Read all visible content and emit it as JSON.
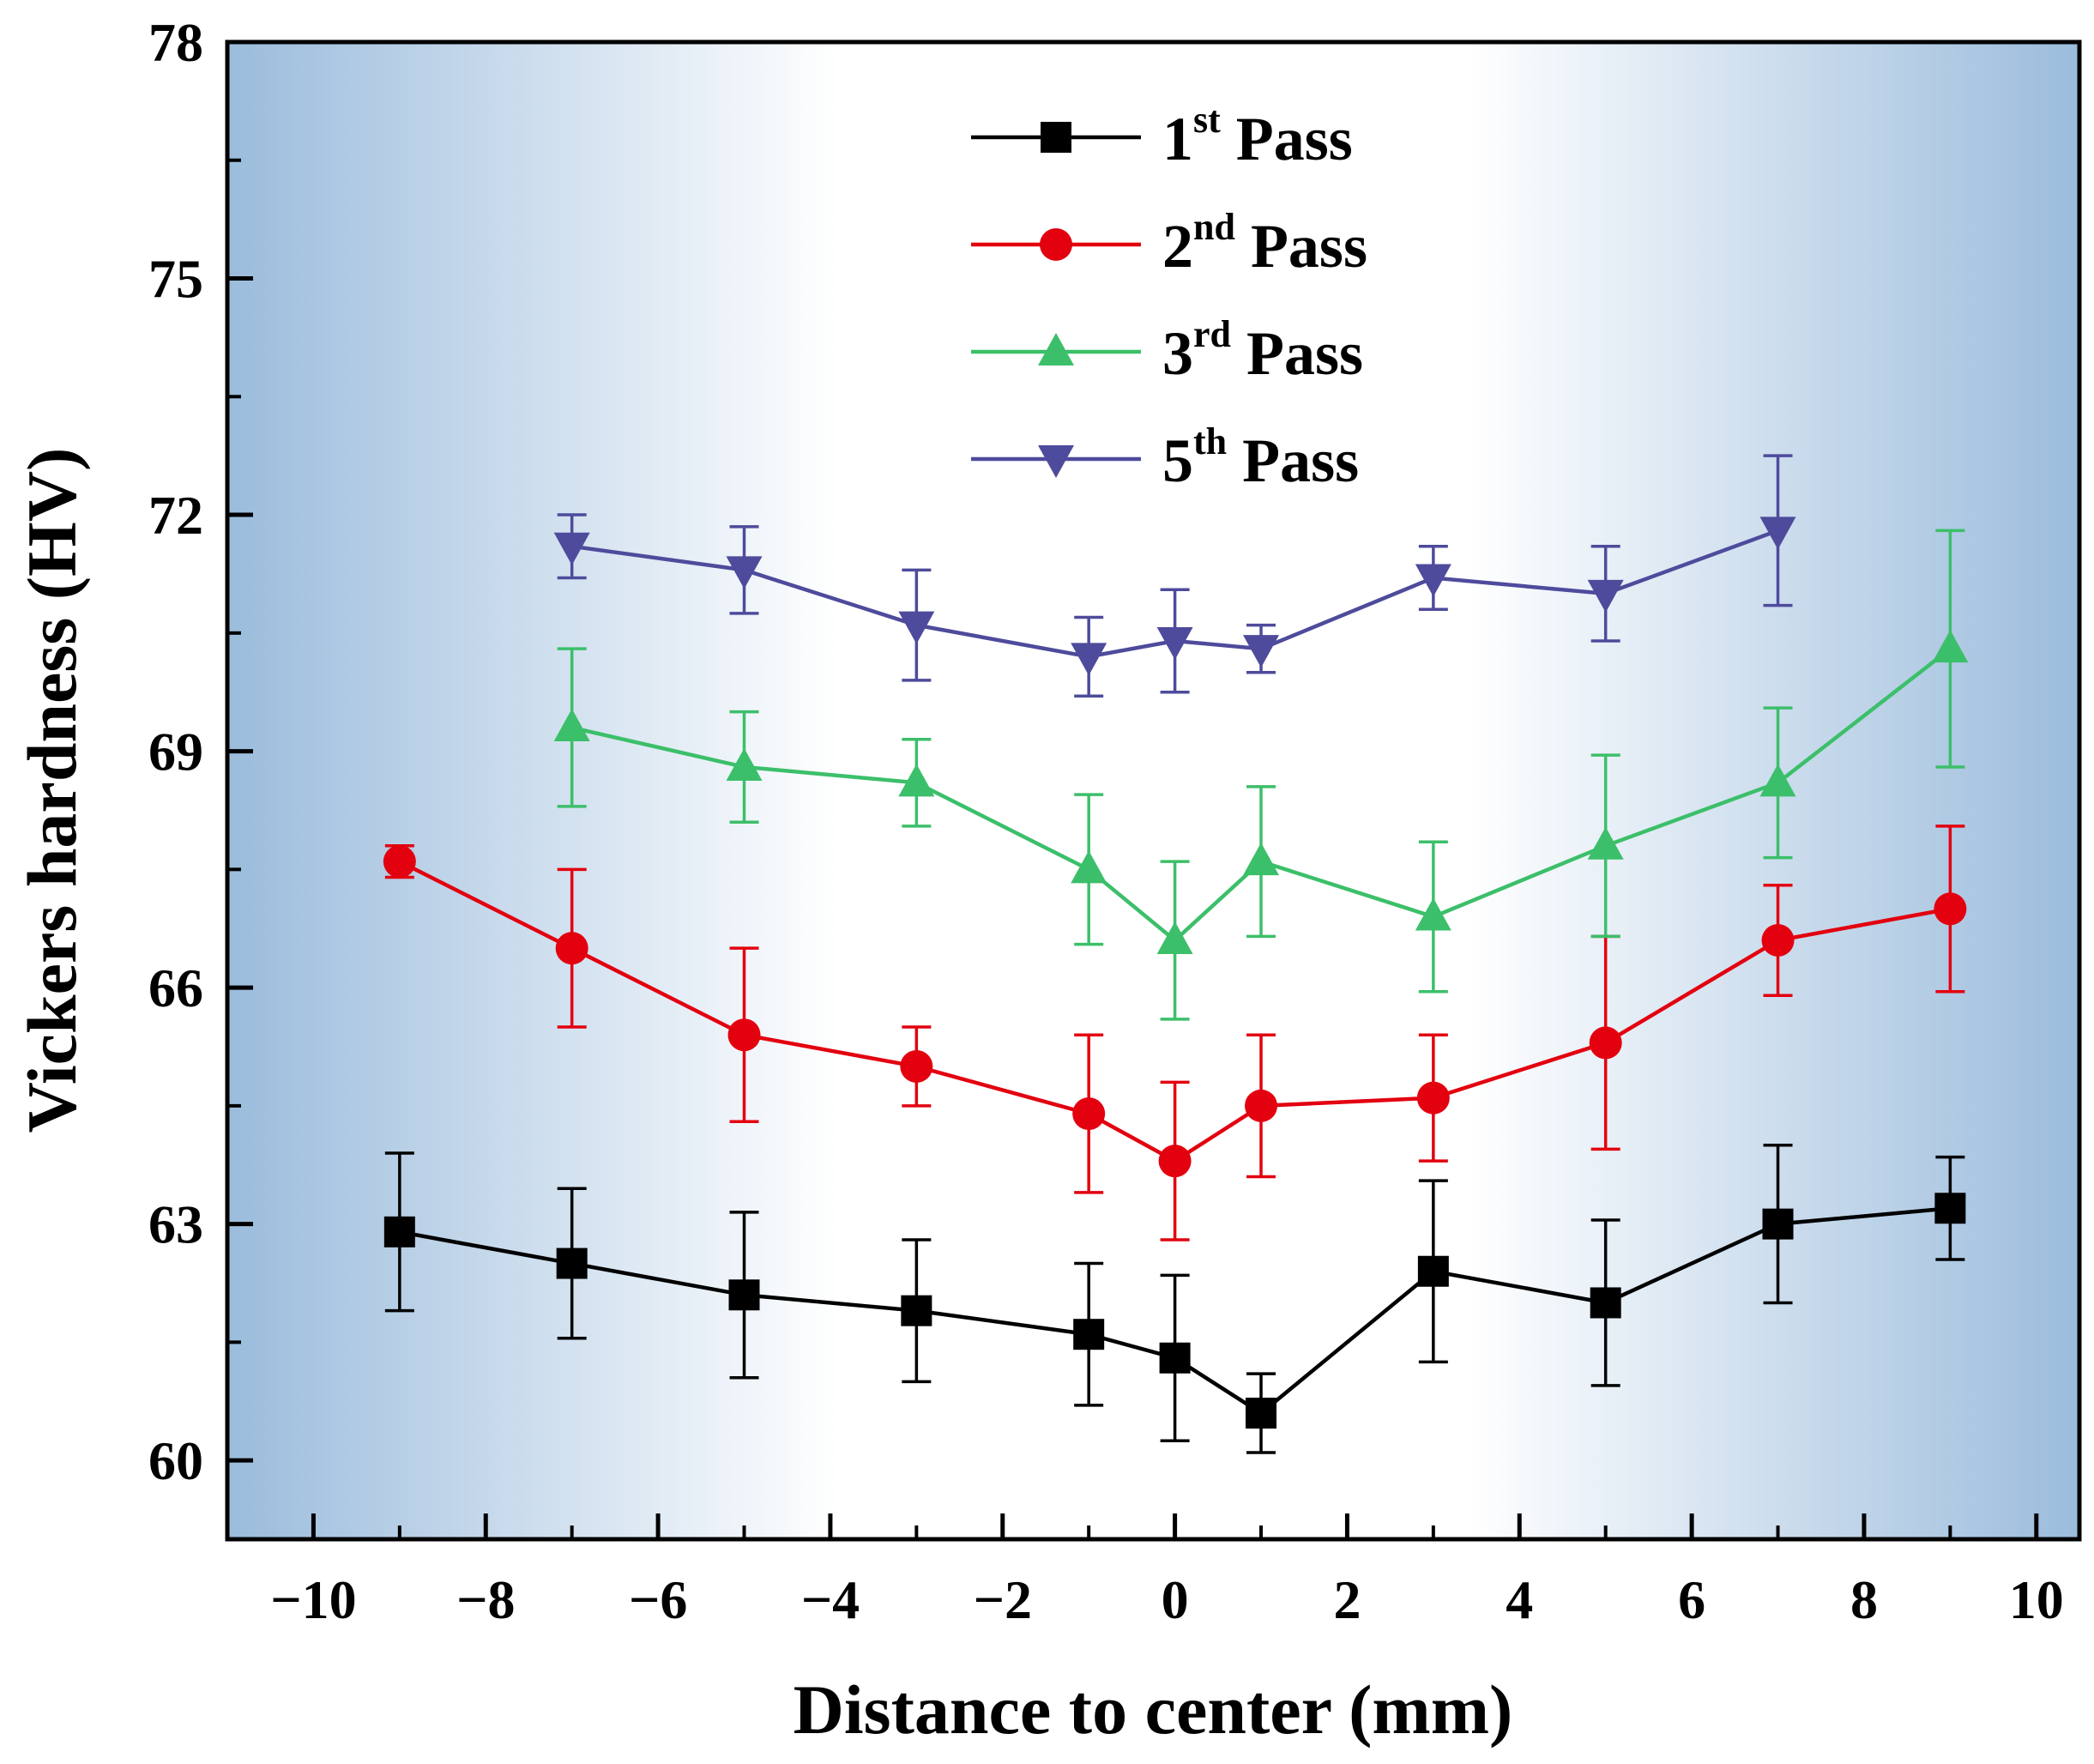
{
  "chart_data": {
    "type": "line",
    "xlabel": "Distance to center (mm)",
    "ylabel": "Vickers hardness (HV)",
    "xlim": [
      -11,
      10.5
    ],
    "ylim": [
      59,
      78
    ],
    "xticks": [
      -10,
      -8,
      -6,
      -4,
      -2,
      0,
      2,
      4,
      6,
      8,
      10
    ],
    "xtick_labels": [
      "−10",
      "−8",
      "−6",
      "−4",
      "−2",
      "0",
      "2",
      "4",
      "6",
      "8",
      "10"
    ],
    "yticks": [
      60,
      63,
      66,
      69,
      72,
      75,
      78
    ],
    "ytick_labels": [
      "60",
      "63",
      "66",
      "69",
      "72",
      "75",
      "78"
    ],
    "background": {
      "edge_color": "#9bbcdc",
      "center_color": "#ffffff"
    },
    "legend_position": "top-center",
    "series": [
      {
        "name": "1st Pass",
        "label_num": "1",
        "label_sup": "st",
        "label_rest": " Pass",
        "color": "#000000",
        "marker": "square",
        "x": [
          -9,
          -7,
          -5,
          -3,
          -1,
          0,
          1,
          3,
          5,
          7,
          9
        ],
        "y": [
          62.9,
          62.5,
          62.1,
          61.9,
          61.6,
          61.3,
          60.6,
          62.4,
          62.0,
          63.0,
          63.2
        ],
        "err": [
          1.0,
          0.95,
          1.05,
          0.9,
          0.9,
          1.05,
          0.5,
          1.15,
          1.05,
          1.0,
          0.65
        ]
      },
      {
        "name": "2nd Pass",
        "label_num": "2",
        "label_sup": "nd",
        "label_rest": " Pass",
        "color": "#e3000f",
        "marker": "circle",
        "x": [
          -9,
          -7,
          -5,
          -3,
          -1,
          0,
          1,
          3,
          5,
          7,
          9
        ],
        "y": [
          67.6,
          66.5,
          65.4,
          65.0,
          64.4,
          63.8,
          64.5,
          64.6,
          65.3,
          66.6,
          67.0
        ],
        "err": [
          0.2,
          1.0,
          1.1,
          0.5,
          1.0,
          1.0,
          0.9,
          0.8,
          1.35,
          0.7,
          1.05
        ]
      },
      {
        "name": "3rd Pass",
        "label_num": "3",
        "label_sup": "rd",
        "label_rest": " Pass",
        "color": "#3cbf6a",
        "marker": "triangle-up",
        "x": [
          -7,
          -5,
          -3,
          -1,
          0,
          1,
          3,
          5,
          7,
          9
        ],
        "y": [
          69.3,
          68.8,
          68.6,
          67.5,
          66.6,
          67.6,
          66.9,
          67.8,
          68.6,
          70.3
        ],
        "err": [
          1.0,
          0.7,
          0.55,
          0.95,
          1.0,
          0.95,
          0.95,
          1.15,
          0.95,
          1.5
        ]
      },
      {
        "name": "5th Pass",
        "label_num": "5",
        "label_sup": "th",
        "label_rest": " Pass",
        "color": "#4e4b9c",
        "marker": "triangle-down",
        "x": [
          -7,
          -5,
          -3,
          -1,
          0,
          1,
          3,
          5,
          7
        ],
        "y": [
          71.6,
          71.3,
          70.6,
          70.2,
          70.4,
          70.3,
          71.2,
          71.0,
          71.8
        ],
        "err": [
          0.4,
          0.55,
          0.7,
          0.5,
          0.65,
          0.3,
          0.4,
          0.6,
          0.95
        ]
      }
    ]
  }
}
